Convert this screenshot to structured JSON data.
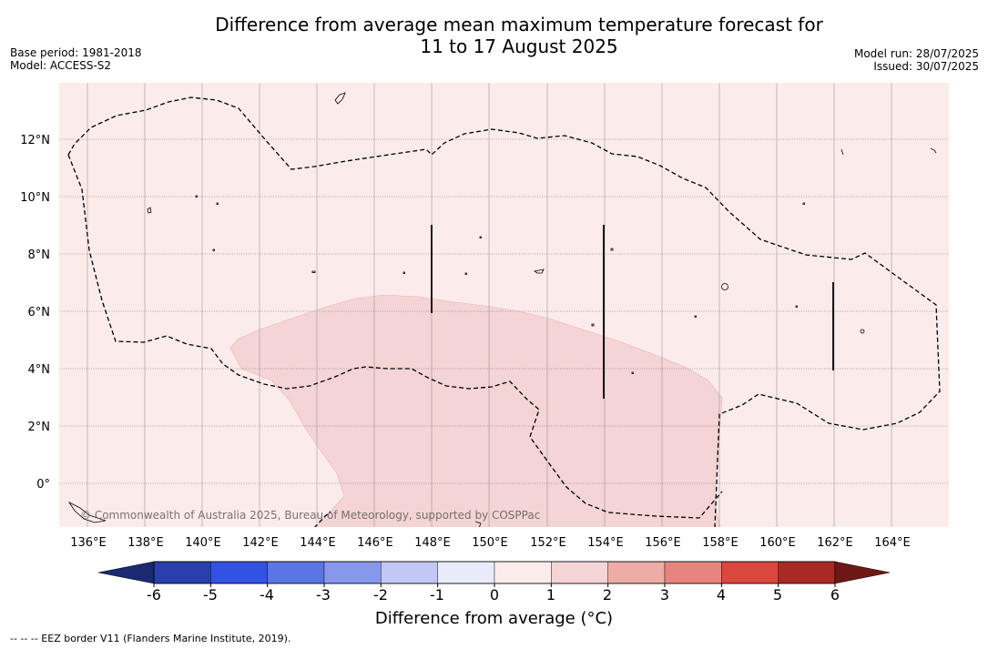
{
  "title": {
    "line1": "Difference from average mean maximum temperature forecast for",
    "line2": "11 to 17 August 2025"
  },
  "meta_left": {
    "base_period": "Base period: 1981-2018",
    "model": "Model: ACCESS-S2"
  },
  "meta_right": {
    "model_run": "Model run: 28/07/2025",
    "issued": "Issued: 30/07/2025"
  },
  "map": {
    "lon_labels": [
      "136°E",
      "138°E",
      "140°E",
      "142°E",
      "144°E",
      "146°E",
      "148°E",
      "150°E",
      "152°E",
      "154°E",
      "156°E",
      "158°E",
      "160°E",
      "162°E",
      "164°E"
    ],
    "lat_labels": [
      "12°N",
      "10°N",
      "8°N",
      "6°N",
      "4°N",
      "2°N",
      "0°"
    ],
    "copyright": "© Commonwealth of Australia 2025, Bureau of Meteorology, supported by COSPPac",
    "background_category": "0 to 1",
    "highlight_category": "1 to 2"
  },
  "colorbar": {
    "ticks": [
      "-6",
      "-5",
      "-4",
      "-3",
      "-2",
      "-1",
      "0",
      "1",
      "2",
      "3",
      "4",
      "5",
      "6"
    ],
    "colors": [
      "#283fad",
      "#3253e0",
      "#5b75e6",
      "#8797ec",
      "#c2c7f4",
      "#e9ebfb",
      "#fdecec",
      "#f4d4d4",
      "#eeaca7",
      "#e8847f",
      "#da473f",
      "#a92a25"
    ],
    "under_color": "#1a2a70",
    "over_color": "#6e1816",
    "label": "Difference from average (°C)"
  },
  "footnote": "--  --  -- EEZ border V11 (Flanders Marine Institute, 2019)."
}
